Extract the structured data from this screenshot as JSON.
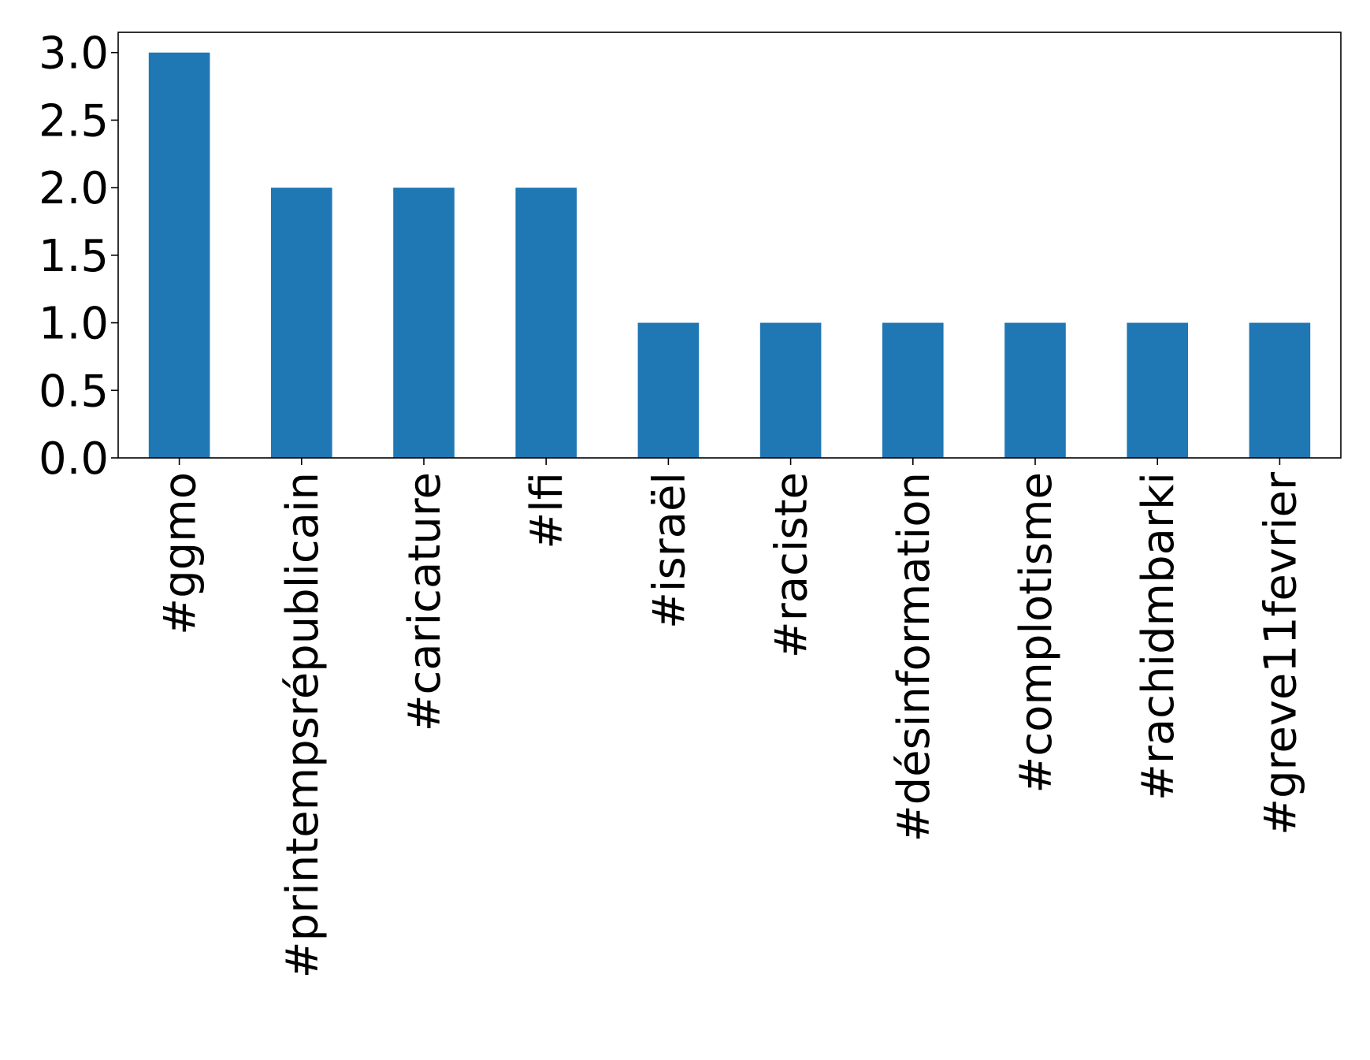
{
  "chart_data": {
    "type": "bar",
    "title": "",
    "xlabel": "",
    "ylabel": "",
    "categories": [
      "#ggmo",
      "#printempsrépublicain",
      "#caricature",
      "#lfi",
      "#israël",
      "#raciste",
      "#désinformation",
      "#complotisme",
      "#rachidmbarki",
      "#greve11fevrier"
    ],
    "values": [
      3,
      2,
      2,
      2,
      1,
      1,
      1,
      1,
      1,
      1
    ],
    "ylim": [
      0,
      3.15
    ],
    "yticks": [
      "0.0",
      "0.5",
      "1.0",
      "1.5",
      "2.0",
      "2.5",
      "3.0"
    ],
    "bar_color": "#1f77b4",
    "grid": false,
    "legend": "none"
  }
}
